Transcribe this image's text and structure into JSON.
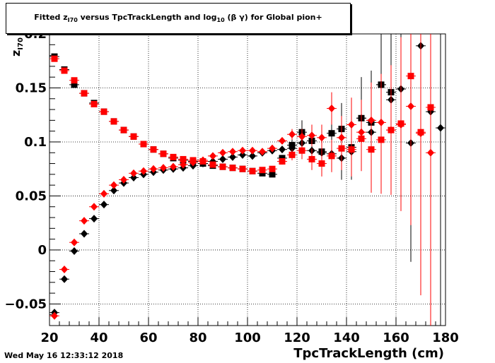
{
  "chart_data": {
    "type": "scatter",
    "title": {
      "prefix": "Fitted  z",
      "sub1": "I70",
      "mid": "  versus TpcTrackLength and log",
      "sub2": "10",
      "suffix": " (β γ) for Global pion+"
    },
    "xlabel": "TpcTrackLength (cm)",
    "ylabel": {
      "main": "z",
      "sub": "I70"
    },
    "xlim": [
      20,
      180
    ],
    "ylim": [
      -0.07,
      0.2
    ],
    "x_ticks": [
      "20",
      "40",
      "60",
      "80",
      "100",
      "120",
      "140",
      "160",
      "180"
    ],
    "y_ticks": [
      {
        "v": -0.05,
        "label": "−0.05"
      },
      {
        "v": 0,
        "label": "0"
      },
      {
        "v": 0.05,
        "label": "0.05"
      },
      {
        "v": 0.1,
        "label": "0.1"
      },
      {
        "v": 0.15,
        "label": "0.15"
      },
      {
        "v": 0.2,
        "label": "0.2"
      }
    ],
    "grid": true,
    "series": [
      {
        "marker": "square",
        "color": "#000000",
        "x": [
          22,
          26,
          30,
          34,
          38,
          42,
          46,
          50,
          54,
          58,
          62,
          66,
          70,
          74,
          78,
          82,
          86,
          90,
          94,
          98,
          102,
          106,
          110,
          114,
          118,
          122,
          126,
          130,
          134,
          138,
          142,
          146,
          150,
          154,
          158
        ],
        "y": [
          0.179,
          0.167,
          0.153,
          0.145,
          0.136,
          0.128,
          0.119,
          0.111,
          0.105,
          0.098,
          0.093,
          0.089,
          0.085,
          0.083,
          0.082,
          0.08,
          0.078,
          0.077,
          0.076,
          0.075,
          0.073,
          0.071,
          0.07,
          0.085,
          0.097,
          0.109,
          0.101,
          0.091,
          0.108,
          0.112,
          0.095,
          0.122,
          0.118,
          0.153,
          0.146
        ],
        "err": [
          0.001,
          0.001,
          0.001,
          0.001,
          0.001,
          0.001,
          0.001,
          0.001,
          0.001,
          0.001,
          0.001,
          0.001,
          0.001,
          0.001,
          0.001,
          0.001,
          0.001,
          0.001,
          0.001,
          0.001,
          0.001,
          0.001,
          0.001,
          0.003,
          0.006,
          0.011,
          0.014,
          0.016,
          0.02,
          0.024,
          0.03,
          0.038,
          0.048,
          0.07,
          0.09
        ]
      },
      {
        "marker": "diamond",
        "color": "#000000",
        "x": [
          22,
          26,
          30,
          34,
          38,
          42,
          46,
          50,
          54,
          58,
          62,
          66,
          70,
          74,
          78,
          82,
          86,
          90,
          94,
          98,
          102,
          106,
          110,
          114,
          118,
          122,
          126,
          130,
          134,
          138,
          142,
          146,
          150,
          154,
          158,
          162,
          166,
          170,
          174,
          178
        ],
        "y": [
          -0.058,
          -0.027,
          -0.001,
          0.015,
          0.029,
          0.042,
          0.055,
          0.062,
          0.067,
          0.07,
          0.072,
          0.074,
          0.075,
          0.076,
          0.078,
          0.08,
          0.082,
          0.084,
          0.086,
          0.088,
          0.087,
          0.09,
          0.092,
          0.093,
          0.094,
          0.099,
          0.092,
          0.09,
          0.089,
          0.085,
          0.091,
          0.122,
          0.109,
          0.153,
          0.139,
          0.149,
          0.099,
          0.189,
          0.128,
          0.113
        ],
        "err": [
          0.001,
          0.001,
          0.001,
          0.001,
          0.001,
          0.001,
          0.001,
          0.001,
          0.001,
          0.001,
          0.001,
          0.001,
          0.001,
          0.001,
          0.001,
          0.001,
          0.001,
          0.001,
          0.001,
          0.001,
          0.001,
          0.001,
          0.002,
          0.003,
          0.005,
          0.008,
          0.01,
          0.012,
          0.015,
          0.02,
          0.026,
          0.035,
          0.045,
          0.06,
          0.075,
          0.09,
          0.11,
          0.12,
          0.14,
          0.2
        ]
      },
      {
        "marker": "square",
        "color": "#ff0000",
        "x": [
          22,
          26,
          30,
          34,
          38,
          42,
          46,
          50,
          54,
          58,
          62,
          66,
          70,
          74,
          78,
          82,
          86,
          90,
          94,
          98,
          102,
          106,
          110,
          114,
          118,
          122,
          126,
          130,
          134,
          138,
          142,
          146,
          150,
          154,
          158,
          162,
          166,
          170,
          174
        ],
        "y": [
          0.177,
          0.166,
          0.157,
          0.145,
          0.135,
          0.128,
          0.119,
          0.111,
          0.105,
          0.098,
          0.093,
          0.089,
          0.086,
          0.084,
          0.083,
          0.082,
          0.079,
          0.077,
          0.076,
          0.075,
          0.073,
          0.074,
          0.075,
          0.082,
          0.088,
          0.092,
          0.084,
          0.08,
          0.087,
          0.094,
          0.093,
          0.103,
          0.093,
          0.102,
          0.111,
          0.117,
          0.161,
          0.109,
          0.132
        ],
        "err": [
          0.001,
          0.001,
          0.001,
          0.001,
          0.001,
          0.001,
          0.001,
          0.001,
          0.001,
          0.001,
          0.001,
          0.001,
          0.001,
          0.001,
          0.001,
          0.001,
          0.001,
          0.001,
          0.001,
          0.001,
          0.001,
          0.001,
          0.001,
          0.003,
          0.005,
          0.008,
          0.01,
          0.012,
          0.015,
          0.02,
          0.025,
          0.03,
          0.04,
          0.05,
          0.06,
          0.08,
          0.1,
          0.14,
          0.16
        ]
      },
      {
        "marker": "diamond",
        "color": "#ff0000",
        "x": [
          22,
          26,
          30,
          34,
          38,
          42,
          46,
          50,
          54,
          58,
          62,
          66,
          70,
          74,
          78,
          82,
          86,
          90,
          94,
          98,
          102,
          106,
          110,
          114,
          118,
          122,
          126,
          130,
          134,
          138,
          142,
          146,
          150,
          154,
          158,
          162,
          166,
          170,
          174
        ],
        "y": [
          -0.061,
          -0.018,
          0.007,
          0.027,
          0.04,
          0.052,
          0.06,
          0.065,
          0.071,
          0.073,
          0.075,
          0.076,
          0.077,
          0.079,
          0.081,
          0.083,
          0.087,
          0.09,
          0.091,
          0.092,
          0.092,
          0.091,
          0.094,
          0.101,
          0.107,
          0.105,
          0.106,
          0.104,
          0.131,
          0.104,
          0.116,
          0.109,
          0.12,
          0.118,
          0.111,
          0.116,
          0.133,
          0.108,
          0.09
        ],
        "err": [
          0.001,
          0.001,
          0.001,
          0.001,
          0.001,
          0.001,
          0.001,
          0.001,
          0.001,
          0.001,
          0.001,
          0.001,
          0.001,
          0.001,
          0.001,
          0.001,
          0.001,
          0.001,
          0.001,
          0.001,
          0.001,
          0.001,
          0.002,
          0.003,
          0.005,
          0.007,
          0.01,
          0.012,
          0.015,
          0.02,
          0.025,
          0.03,
          0.035,
          0.045,
          0.06,
          0.08,
          0.11,
          0.15,
          0.17
        ]
      }
    ]
  },
  "footer": {
    "timestamp": "Wed May 16 12:33:12 2018"
  }
}
